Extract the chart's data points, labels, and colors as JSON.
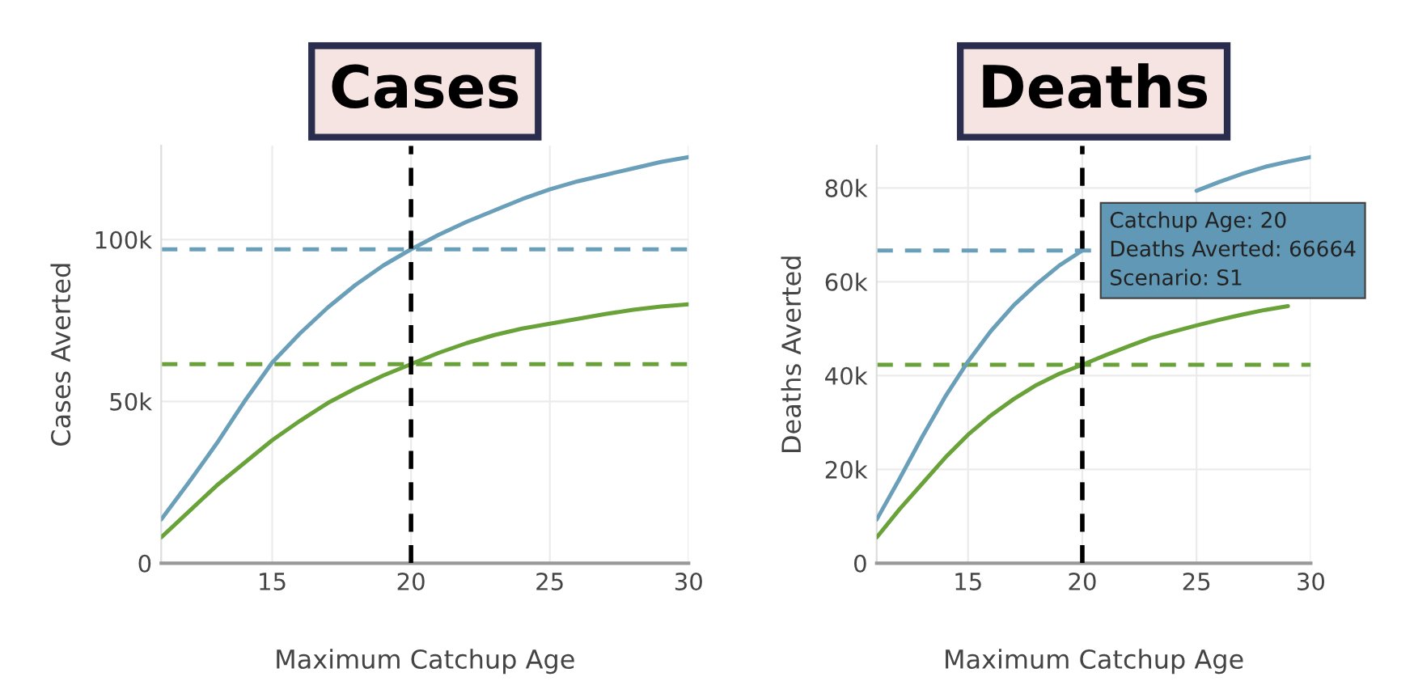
{
  "chart_data": [
    {
      "type": "line",
      "title": "Cases",
      "xlabel": "Maximum Catchup Age",
      "ylabel": "Cases Averted",
      "x": [
        11,
        12,
        13,
        14,
        15,
        16,
        17,
        18,
        19,
        20,
        21,
        22,
        23,
        24,
        25,
        26,
        27,
        28,
        29,
        30
      ],
      "series": [
        {
          "color": "#6a9fba",
          "values": [
            13500,
            25000,
            37000,
            50000,
            62000,
            71000,
            79000,
            86000,
            92000,
            97000,
            101500,
            105500,
            109000,
            112500,
            115500,
            118000,
            120000,
            122000,
            124000,
            125500
          ]
        },
        {
          "color": "#6aa23a",
          "values": [
            8000,
            16000,
            24000,
            31000,
            38000,
            44000,
            49500,
            54000,
            58000,
            61500,
            65000,
            68000,
            70500,
            72500,
            74000,
            75500,
            77000,
            78300,
            79300,
            80000
          ]
        }
      ],
      "xlim": [
        11,
        30
      ],
      "xticks": [
        15,
        20,
        25,
        30
      ],
      "ylim": [
        0,
        129000
      ],
      "yticks": [
        {
          "value": 0,
          "label": "0"
        },
        {
          "value": 50000,
          "label": "50k"
        },
        {
          "value": 100000,
          "label": "100k"
        }
      ],
      "grid": true,
      "ref_lines": [
        {
          "axis": "x",
          "value": 20,
          "color": "#000000",
          "line_style": "dashed"
        },
        {
          "axis": "y",
          "value": 97000,
          "color": "#6a9fba",
          "line_style": "dashed"
        },
        {
          "axis": "y",
          "value": 61500,
          "color": "#6aa23a",
          "line_style": "dashed"
        }
      ]
    },
    {
      "type": "line",
      "title": "Deaths",
      "xlabel": "Maximum Catchup Age",
      "ylabel": "Deaths Averted",
      "x": [
        11,
        12,
        13,
        14,
        15,
        16,
        17,
        18,
        19,
        20,
        21,
        22,
        23,
        24,
        25,
        26,
        27,
        28,
        29,
        30
      ],
      "series": [
        {
          "color": "#6a9fba",
          "values": [
            9300,
            18000,
            27000,
            35500,
            43000,
            49500,
            55000,
            59500,
            63500,
            66664,
            null,
            null,
            null,
            null,
            79400,
            81300,
            83000,
            84500,
            85600,
            86600
          ]
        },
        {
          "color": "#6aa23a",
          "values": [
            5500,
            11500,
            17000,
            22500,
            27400,
            31500,
            35000,
            38000,
            40400,
            42300,
            44300,
            46200,
            48000,
            49400,
            50700,
            51900,
            53000,
            54000,
            54800,
            null
          ]
        }
      ],
      "xlim": [
        11,
        30
      ],
      "xticks": [
        15,
        20,
        25,
        30
      ],
      "ylim": [
        0,
        89000
      ],
      "yticks": [
        {
          "value": 0,
          "label": "0"
        },
        {
          "value": 20000,
          "label": "20k"
        },
        {
          "value": 40000,
          "label": "40k"
        },
        {
          "value": 60000,
          "label": "60k"
        },
        {
          "value": 80000,
          "label": "80k"
        }
      ],
      "grid": true,
      "annotations": [
        {
          "text": "Catchup Age: 20\nDeaths Averted: 66664\nScenario: S1",
          "x": 20,
          "y": 66664
        }
      ],
      "ref_lines": [
        {
          "axis": "x",
          "value": 20,
          "color": "#000000",
          "line_style": "dashed"
        },
        {
          "axis": "y",
          "value": 66664,
          "color": "#6a9fba",
          "line_style": "dashed"
        },
        {
          "axis": "y",
          "value": 42300,
          "color": "#6aa23a",
          "line_style": "dashed"
        }
      ]
    }
  ]
}
